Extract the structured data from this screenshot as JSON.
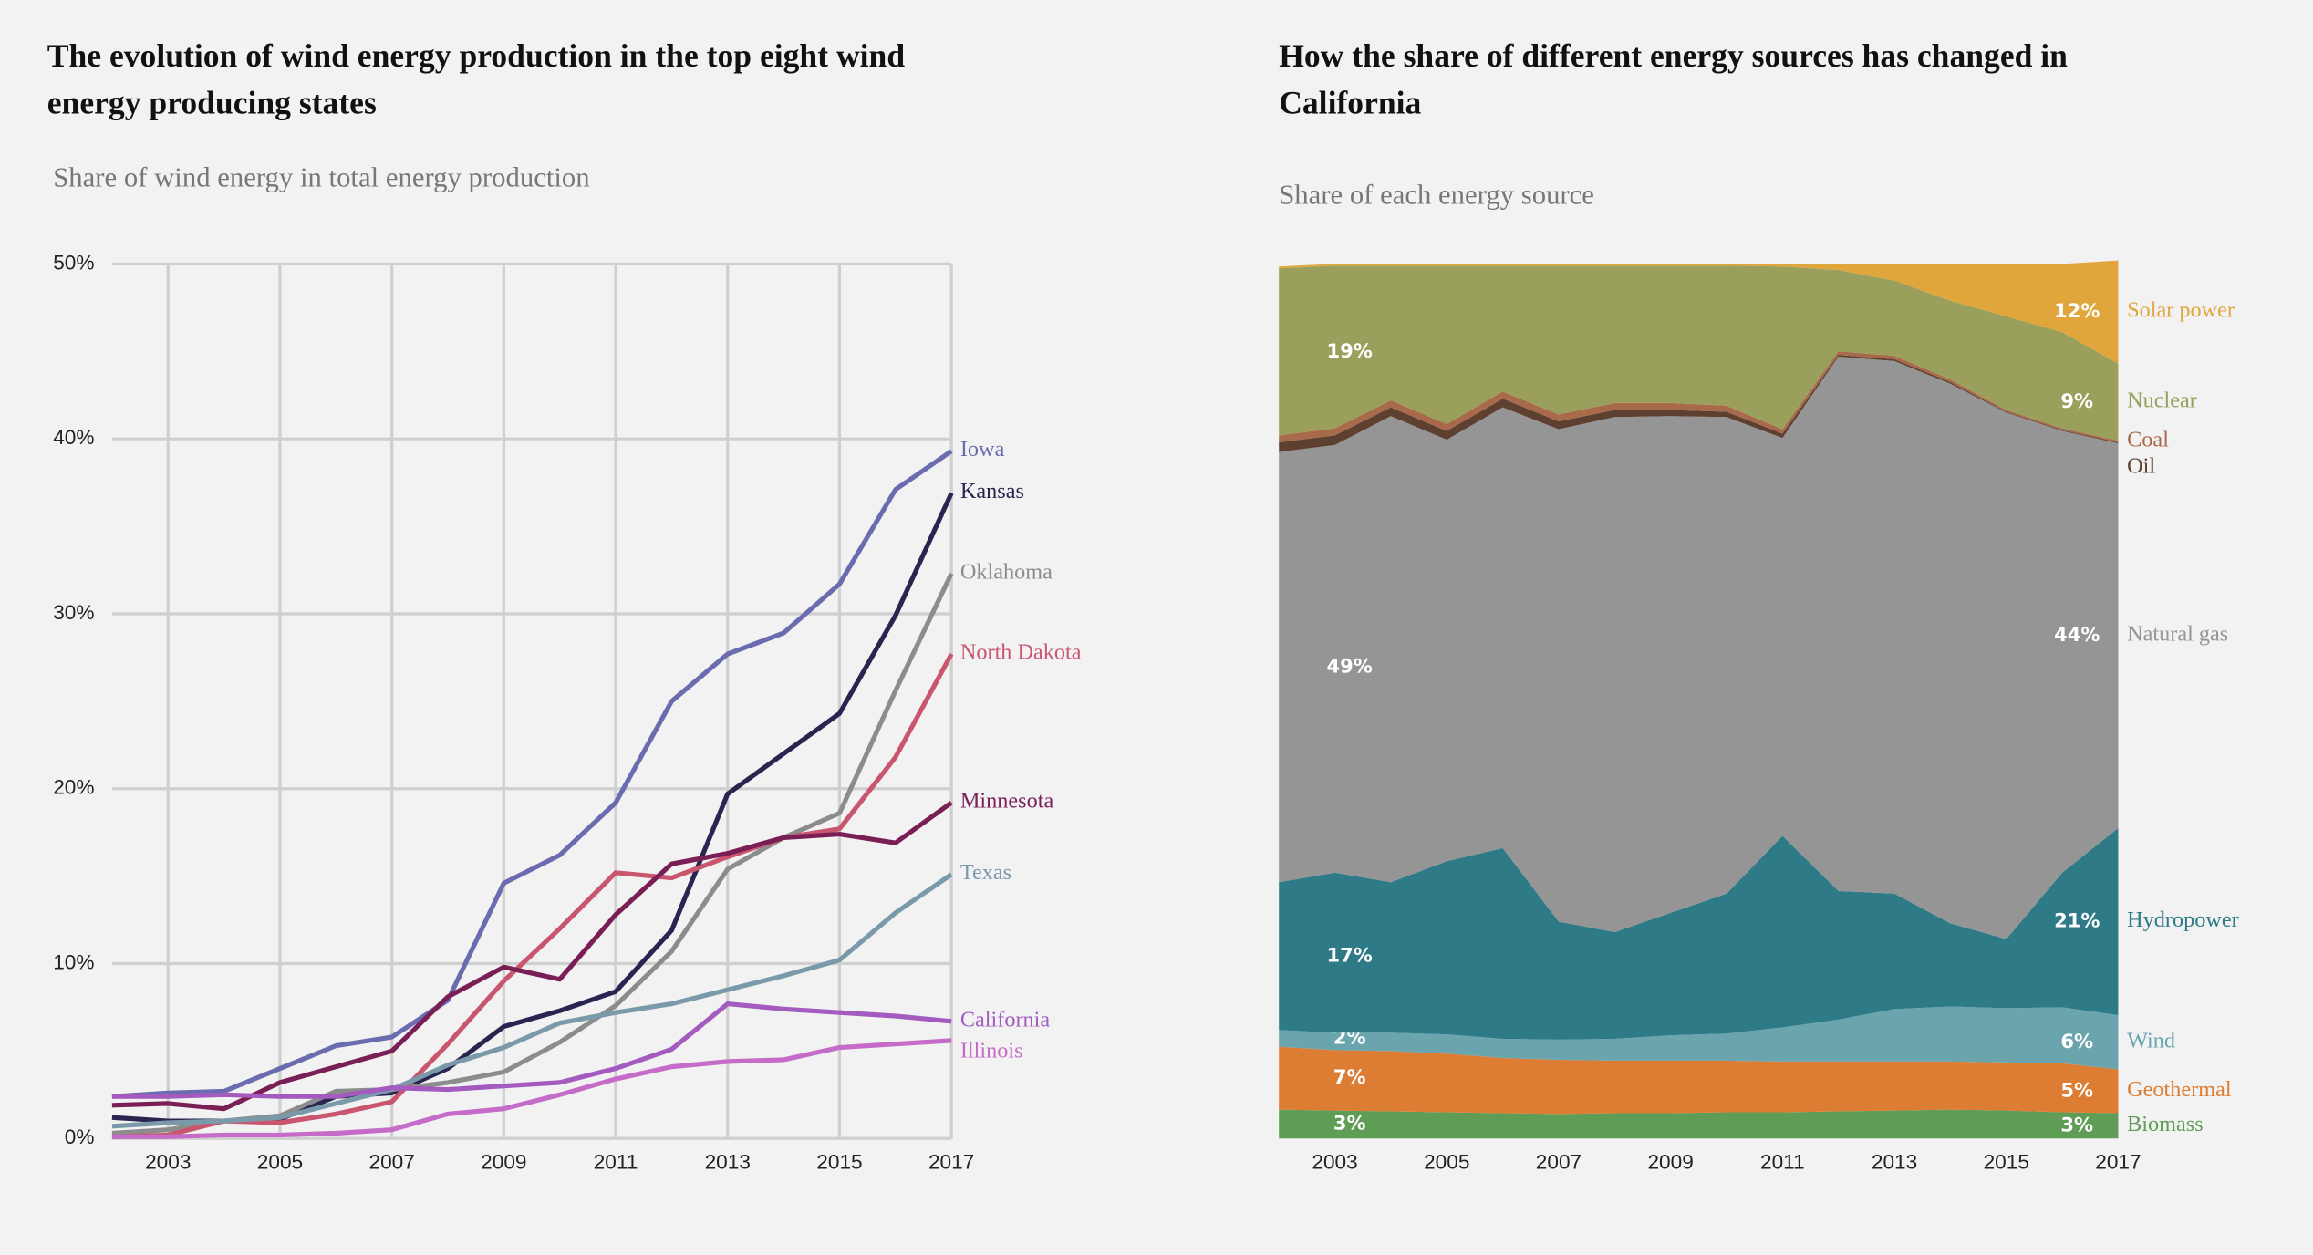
{
  "chart_data": [
    {
      "type": "line",
      "title": "The evolution of wind energy production in the top eight wind energy producing states",
      "subtitle": "Share of wind energy in total energy production",
      "x": [
        2002,
        2003,
        2004,
        2005,
        2006,
        2007,
        2008,
        2009,
        2010,
        2011,
        2012,
        2013,
        2014,
        2015,
        2016,
        2017
      ],
      "xlim": [
        2002,
        2017
      ],
      "xticks": [
        2003,
        2005,
        2007,
        2009,
        2011,
        2013,
        2015,
        2017
      ],
      "ylim": [
        0,
        50
      ],
      "yticks": [
        {
          "value": 0,
          "label": "0%"
        },
        {
          "value": 10,
          "label": "10%"
        },
        {
          "value": 20,
          "label": "20%"
        },
        {
          "value": 30,
          "label": "30%"
        },
        {
          "value": 40,
          "label": "40%"
        },
        {
          "value": 50,
          "label": "50%"
        }
      ],
      "grid": true,
      "series": [
        {
          "name": "Iowa",
          "color": "#6b6bb0",
          "values": [
            2.4,
            2.6,
            2.7,
            4.0,
            5.3,
            5.8,
            7.9,
            14.6,
            16.2,
            19.2,
            25.0,
            27.7,
            28.9,
            31.7,
            37.1,
            39.3
          ]
        },
        {
          "name": "Kansas",
          "color": "#2a2450",
          "values": [
            1.2,
            1.0,
            1.0,
            1.1,
            2.4,
            2.6,
            4.0,
            6.4,
            7.3,
            8.4,
            11.9,
            19.7,
            22.0,
            24.3,
            29.9,
            36.9
          ]
        },
        {
          "name": "Oklahoma",
          "color": "#8c8c8c",
          "values": [
            0.3,
            0.5,
            1.0,
            1.3,
            2.7,
            2.8,
            3.2,
            3.8,
            5.5,
            7.6,
            10.7,
            15.4,
            17.2,
            18.6,
            25.6,
            32.3
          ]
        },
        {
          "name": "North Dakota",
          "color": "#c9556f",
          "values": [
            0.1,
            0.2,
            1.0,
            0.9,
            1.4,
            2.1,
            5.4,
            9.0,
            12.0,
            15.2,
            14.9,
            16.1,
            17.2,
            17.7,
            21.8,
            27.7
          ]
        },
        {
          "name": "Minnesota",
          "color": "#7a1f55",
          "values": [
            1.9,
            2.0,
            1.7,
            3.2,
            4.1,
            5.0,
            8.1,
            9.8,
            9.1,
            12.8,
            15.7,
            16.3,
            17.2,
            17.4,
            16.9,
            19.2
          ]
        },
        {
          "name": "Texas",
          "color": "#7a9aaa",
          "values": [
            0.7,
            0.9,
            1.0,
            1.2,
            2.0,
            2.8,
            4.2,
            5.2,
            6.6,
            7.2,
            7.7,
            8.5,
            9.3,
            10.2,
            12.9,
            15.1
          ]
        },
        {
          "name": "California",
          "color": "#a35bc0",
          "values": [
            2.4,
            2.4,
            2.5,
            2.4,
            2.4,
            2.9,
            2.8,
            3.0,
            3.2,
            4.0,
            5.1,
            7.7,
            7.4,
            7.2,
            7.0,
            6.7
          ]
        },
        {
          "name": "Illinois",
          "color": "#c46cc7",
          "values": [
            0.1,
            0.1,
            0.2,
            0.2,
            0.3,
            0.5,
            1.4,
            1.7,
            2.5,
            3.4,
            4.1,
            4.4,
            4.5,
            5.2,
            5.4,
            5.6
          ]
        }
      ]
    },
    {
      "type": "area",
      "stacked": true,
      "title": "How the share of different energy sources has changed in California",
      "subtitle": "Share of each energy source",
      "x": [
        2002,
        2003,
        2004,
        2005,
        2006,
        2007,
        2008,
        2009,
        2010,
        2011,
        2012,
        2013,
        2014,
        2015,
        2016,
        2017
      ],
      "xlim": [
        2002,
        2017
      ],
      "xticks": [
        2003,
        2005,
        2007,
        2009,
        2011,
        2013,
        2015,
        2017
      ],
      "ylim": [
        0,
        100
      ],
      "series": [
        {
          "name": "Biomass",
          "color": "#5f9c55",
          "values": [
            3.3,
            3.2,
            3.1,
            3.0,
            2.9,
            2.8,
            2.9,
            2.9,
            3.0,
            3.0,
            3.1,
            3.2,
            3.3,
            3.2,
            3.0,
            2.9
          ],
          "value_labels": [
            "3%",
            null,
            null,
            null,
            null,
            null,
            null,
            null,
            null,
            null,
            null,
            null,
            null,
            null,
            null,
            "3%"
          ]
        },
        {
          "name": "Geothermal",
          "color": "#dd7d33",
          "values": [
            7.2,
            6.9,
            6.9,
            6.7,
            6.3,
            6.2,
            6.0,
            6.0,
            5.9,
            5.8,
            5.7,
            5.6,
            5.5,
            5.5,
            5.6,
            5.0
          ],
          "value_labels": [
            "7%",
            null,
            null,
            null,
            null,
            null,
            null,
            null,
            null,
            null,
            null,
            null,
            null,
            null,
            null,
            "5%"
          ]
        },
        {
          "name": "Wind",
          "color": "#6aa5ae",
          "values": [
            1.9,
            2.0,
            2.1,
            2.2,
            2.2,
            2.3,
            2.5,
            2.9,
            3.1,
            3.9,
            4.8,
            6.0,
            6.3,
            6.2,
            6.4,
            6.2
          ],
          "value_labels": [
            "2%",
            null,
            null,
            null,
            null,
            null,
            null,
            null,
            null,
            null,
            null,
            null,
            null,
            null,
            null,
            "6%"
          ]
        },
        {
          "name": "Hydropower",
          "color": "#2e7a87",
          "values": [
            16.9,
            18.3,
            17.2,
            19.8,
            21.8,
            13.5,
            12.2,
            14.0,
            16.0,
            21.9,
            14.7,
            13.2,
            9.5,
            7.9,
            15.4,
            21.4
          ],
          "value_labels": [
            "17%",
            null,
            null,
            null,
            null,
            null,
            null,
            null,
            null,
            null,
            null,
            null,
            null,
            null,
            null,
            "21%"
          ]
        },
        {
          "name": "Natural gas",
          "color": "#959595",
          "values": [
            49.2,
            48.9,
            53.3,
            48.2,
            50.4,
            56.3,
            58.9,
            56.8,
            54.5,
            45.5,
            61.1,
            60.9,
            61.7,
            60.2,
            50.5,
            44.0
          ],
          "value_labels": [
            "49%",
            null,
            null,
            null,
            null,
            null,
            null,
            null,
            null,
            null,
            null,
            null,
            null,
            null,
            null,
            "44%"
          ]
        },
        {
          "name": "Oil",
          "color": "#5e4030",
          "values": [
            1.1,
            1.1,
            1.0,
            1.0,
            1.0,
            0.9,
            0.8,
            0.7,
            0.6,
            0.5,
            0.2,
            0.2,
            0.2,
            0.1,
            0.1,
            0.1
          ]
        },
        {
          "name": "Coal",
          "color": "#a86a4a",
          "values": [
            0.8,
            0.8,
            0.8,
            0.8,
            0.8,
            0.8,
            0.8,
            0.8,
            0.7,
            0.5,
            0.4,
            0.4,
            0.3,
            0.2,
            0.2,
            0.2
          ]
        },
        {
          "name": "Nuclear",
          "color": "#9aa05c",
          "values": [
            19.1,
            18.6,
            15.4,
            18.1,
            14.4,
            17.0,
            15.7,
            15.7,
            16.0,
            18.6,
            9.3,
            8.6,
            9.0,
            10.7,
            11.0,
            8.8
          ],
          "value_labels": [
            "19%",
            null,
            null,
            null,
            null,
            null,
            null,
            null,
            null,
            null,
            null,
            null,
            null,
            null,
            null,
            "9%"
          ]
        },
        {
          "name": "Solar power",
          "color": "#e0a63c",
          "values": [
            0.2,
            0.2,
            0.2,
            0.2,
            0.2,
            0.2,
            0.2,
            0.2,
            0.2,
            0.3,
            0.7,
            1.9,
            4.2,
            6.0,
            7.8,
            11.8
          ],
          "value_labels": [
            null,
            null,
            null,
            null,
            null,
            null,
            null,
            null,
            null,
            null,
            null,
            null,
            null,
            null,
            null,
            "12%"
          ]
        }
      ]
    }
  ]
}
